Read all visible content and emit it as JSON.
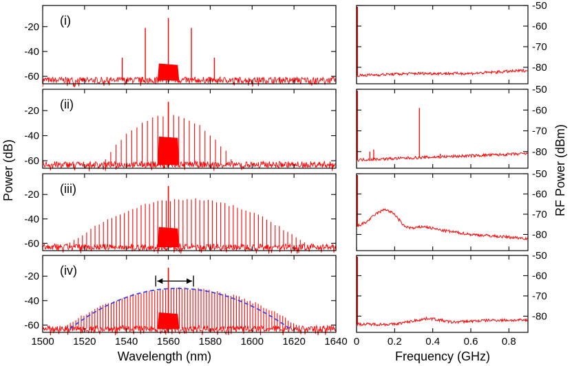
{
  "chart_data": {
    "type": "line",
    "figure": "Optical spectra and RF power spectra for four operating states",
    "optical": {
      "xlabel": "Wavelength (nm)",
      "ylabel": "Power (dB)",
      "xlim": [
        1500,
        1640
      ],
      "ylim": [
        -66,
        -3
      ],
      "xticks": [
        1500,
        1520,
        1540,
        1560,
        1580,
        1600,
        1620,
        1640
      ],
      "yticks": [
        -20,
        -40,
        -60
      ],
      "color": "#ff0000",
      "noise_floor": -63,
      "center_nm": 1560,
      "pump_notch": {
        "from": 1555,
        "to": 1565,
        "level": -40
      },
      "panels": [
        {
          "label": "(i)",
          "lines": [
            {
              "x": 1538,
              "y": -45
            },
            {
              "x": 1549,
              "y": -21
            },
            {
              "x": 1560,
              "y": -13
            },
            {
              "x": 1571,
              "y": -21
            },
            {
              "x": 1582,
              "y": -45
            }
          ],
          "notch_level": -50
        },
        {
          "label": "(ii)",
          "comb": {
            "from": 1530,
            "to": 1590,
            "spacing": 2.5,
            "peak": -24,
            "edge": -58
          },
          "center_peak": -13,
          "notch_level": -41
        },
        {
          "label": "(iii)",
          "comb": {
            "from": 1513,
            "to": 1625,
            "spacing": 2.0,
            "peak": -24,
            "edge": -60
          },
          "center_peak": -13,
          "notch_level": -47
        },
        {
          "label": "(iv)",
          "comb": {
            "from": 1508,
            "to": 1625,
            "spacing": 1.3,
            "peak": -30,
            "edge": -64
          },
          "center_peak": -13,
          "notch_level": -50,
          "envelope": {
            "from": 1513,
            "to": 1618,
            "peak_x": 1564,
            "peak_y": -30,
            "color": "#3344ee",
            "style": "dashed"
          },
          "arrow": {
            "from": 1554,
            "to": 1572,
            "y": -24
          }
        }
      ]
    },
    "rf": {
      "xlabel": "Frequency (GHz)",
      "ylabel": "RF Power (dBm)",
      "xlim": [
        0,
        0.9
      ],
      "ylim": [
        -88,
        -50
      ],
      "xticks": [
        0,
        0.2,
        0.4,
        0.6,
        0.8
      ],
      "xtick_labels": [
        "0",
        "0.2",
        "0.4",
        "0.6",
        "0.8"
      ],
      "yticks": [
        -50,
        -60,
        -70,
        -80
      ],
      "color": "#ff0000",
      "panels": [
        {
          "label": "(i)",
          "baseline": [
            [
              0,
              -84
            ],
            [
              0.3,
              -83
            ],
            [
              0.6,
              -83
            ],
            [
              0.9,
              -81.5
            ]
          ],
          "peaks": []
        },
        {
          "label": "(ii)",
          "baseline": [
            [
              0,
              -84
            ],
            [
              0.3,
              -83
            ],
            [
              0.6,
              -82
            ],
            [
              0.9,
              -81
            ]
          ],
          "peaks": [
            {
              "x": 0.07,
              "y": -80
            },
            {
              "x": 0.09,
              "y": -79
            },
            {
              "x": 0.33,
              "y": -59
            },
            {
              "x": 0.44,
              "y": -81
            }
          ]
        },
        {
          "label": "(iii)",
          "baseline": [
            [
              0,
              -76
            ],
            [
              0.05,
              -74
            ],
            [
              0.1,
              -70
            ],
            [
              0.15,
              -67.5
            ],
            [
              0.2,
              -70
            ],
            [
              0.25,
              -76
            ],
            [
              0.3,
              -77
            ],
            [
              0.35,
              -76
            ],
            [
              0.45,
              -78
            ],
            [
              0.6,
              -80
            ],
            [
              0.75,
              -81
            ],
            [
              0.9,
              -82
            ]
          ],
          "peaks": []
        },
        {
          "label": "(iv)",
          "baseline": [
            [
              0,
              -84
            ],
            [
              0.2,
              -84
            ],
            [
              0.38,
              -81
            ],
            [
              0.5,
              -83
            ],
            [
              0.7,
              -82
            ],
            [
              0.9,
              -82
            ]
          ],
          "peaks": []
        }
      ]
    }
  }
}
